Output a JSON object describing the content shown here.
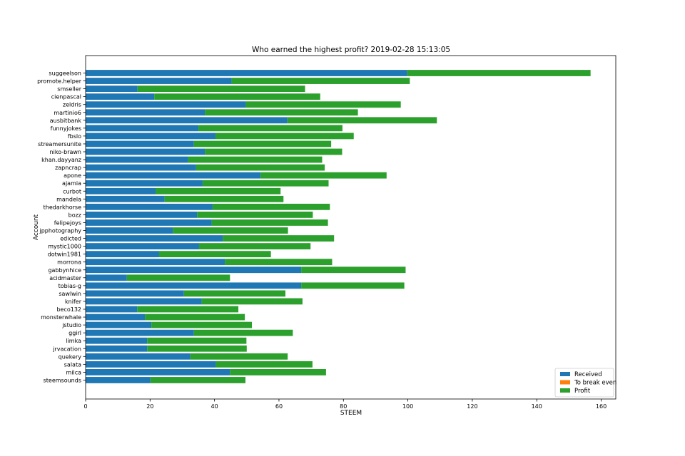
{
  "chart_data": {
    "type": "bar",
    "orientation": "horizontal",
    "stacked": true,
    "title": "Who earned the highest profit? 2019-02-28 15:13:05",
    "xlabel": "STEEM",
    "ylabel": "Account",
    "xlim": [
      0,
      165
    ],
    "xticks": [
      0,
      20,
      40,
      60,
      80,
      100,
      120,
      140,
      160
    ],
    "grid": false,
    "legend_position": "bottom-right",
    "categories": [
      "suggeelson",
      "promote.helper",
      "smseller",
      "cienpascal",
      "zeldris",
      "martinio6",
      "ausbitbank",
      "funnyjokes",
      "fbslo",
      "streamersunite",
      "niko-brawn",
      "khan.dayyanz",
      "zapncrap",
      "apone",
      "ajamia",
      "curbot",
      "mandela",
      "thedarkhorse",
      "bozz",
      "felipejoys",
      "jpphotography",
      "edicted",
      "mystic1000",
      "dotwin1981",
      "morrona",
      "gabbynhice",
      "acidmaster",
      "tobias-g",
      "sawlwin",
      "knifer",
      "beco132",
      "monsterwhale",
      "jstudio",
      "ggirl",
      "limka",
      "jrvacation",
      "quekery",
      "salata",
      "milca",
      "steemsounds"
    ],
    "series": [
      {
        "name": "Received",
        "color": "#1f77b4",
        "values": [
          99.8,
          45.3,
          16.1,
          21.3,
          49.7,
          37.0,
          62.6,
          35.0,
          40.3,
          33.6,
          37.0,
          31.8,
          34.3,
          54.3,
          36.3,
          21.7,
          24.5,
          39.4,
          34.6,
          39.1,
          27.1,
          42.6,
          35.2,
          22.8,
          43.2,
          66.9,
          12.8,
          66.9,
          30.5,
          36.0,
          16.0,
          18.4,
          20.4,
          33.6,
          19.1,
          19.1,
          32.5,
          40.4,
          44.8,
          20.1
        ]
      },
      {
        "name": "To break even",
        "color": "#ff7f0e",
        "values": [
          0,
          0,
          0,
          0,
          0,
          0,
          0,
          0,
          0,
          0,
          0,
          0,
          0,
          0,
          0,
          0,
          0,
          0,
          0,
          0,
          0,
          0,
          0,
          0,
          0,
          0,
          0,
          0,
          0,
          0,
          0,
          0,
          0,
          0,
          0,
          0,
          0,
          0,
          0,
          0
        ]
      },
      {
        "name": "Profit",
        "color": "#2ca02c",
        "values": [
          56.9,
          55.3,
          52.0,
          51.5,
          48.1,
          47.5,
          46.4,
          44.7,
          42.9,
          42.6,
          42.6,
          41.6,
          39.9,
          39.1,
          39.1,
          38.8,
          36.9,
          36.4,
          35.9,
          36.1,
          35.7,
          34.5,
          34.6,
          34.7,
          33.3,
          32.4,
          32.0,
          32.0,
          31.5,
          31.3,
          31.4,
          31.0,
          31.2,
          30.7,
          30.8,
          30.9,
          30.2,
          30.0,
          29.8,
          29.5
        ]
      }
    ]
  }
}
